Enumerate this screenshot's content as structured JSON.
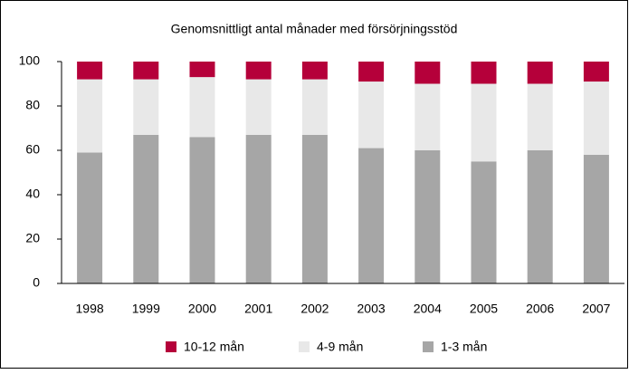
{
  "chart_data": {
    "type": "stacked_bar",
    "title": "Genomsnittligt antal månader med försörjningsstöd",
    "categories": [
      "1998",
      "1999",
      "2000",
      "2001",
      "2002",
      "2003",
      "2004",
      "2005",
      "2006",
      "2007"
    ],
    "series": [
      {
        "name": "10-12 mån",
        "color": "#b5003a",
        "values": [
          8,
          8,
          7,
          8,
          8,
          9,
          10,
          10,
          10,
          9
        ]
      },
      {
        "name": "4-9 mån",
        "color": "#e8e8e8",
        "values": [
          33,
          25,
          27,
          25,
          25,
          30,
          30,
          35,
          30,
          33
        ]
      },
      {
        "name": "1-3 mån",
        "color": "#a6a6a6",
        "values": [
          59,
          67,
          66,
          67,
          67,
          61,
          60,
          55,
          60,
          58
        ]
      }
    ],
    "ylim": [
      0,
      100
    ],
    "yticks": [
      0,
      20,
      40,
      60,
      80,
      100
    ],
    "grid": false,
    "legend": "bottom"
  }
}
